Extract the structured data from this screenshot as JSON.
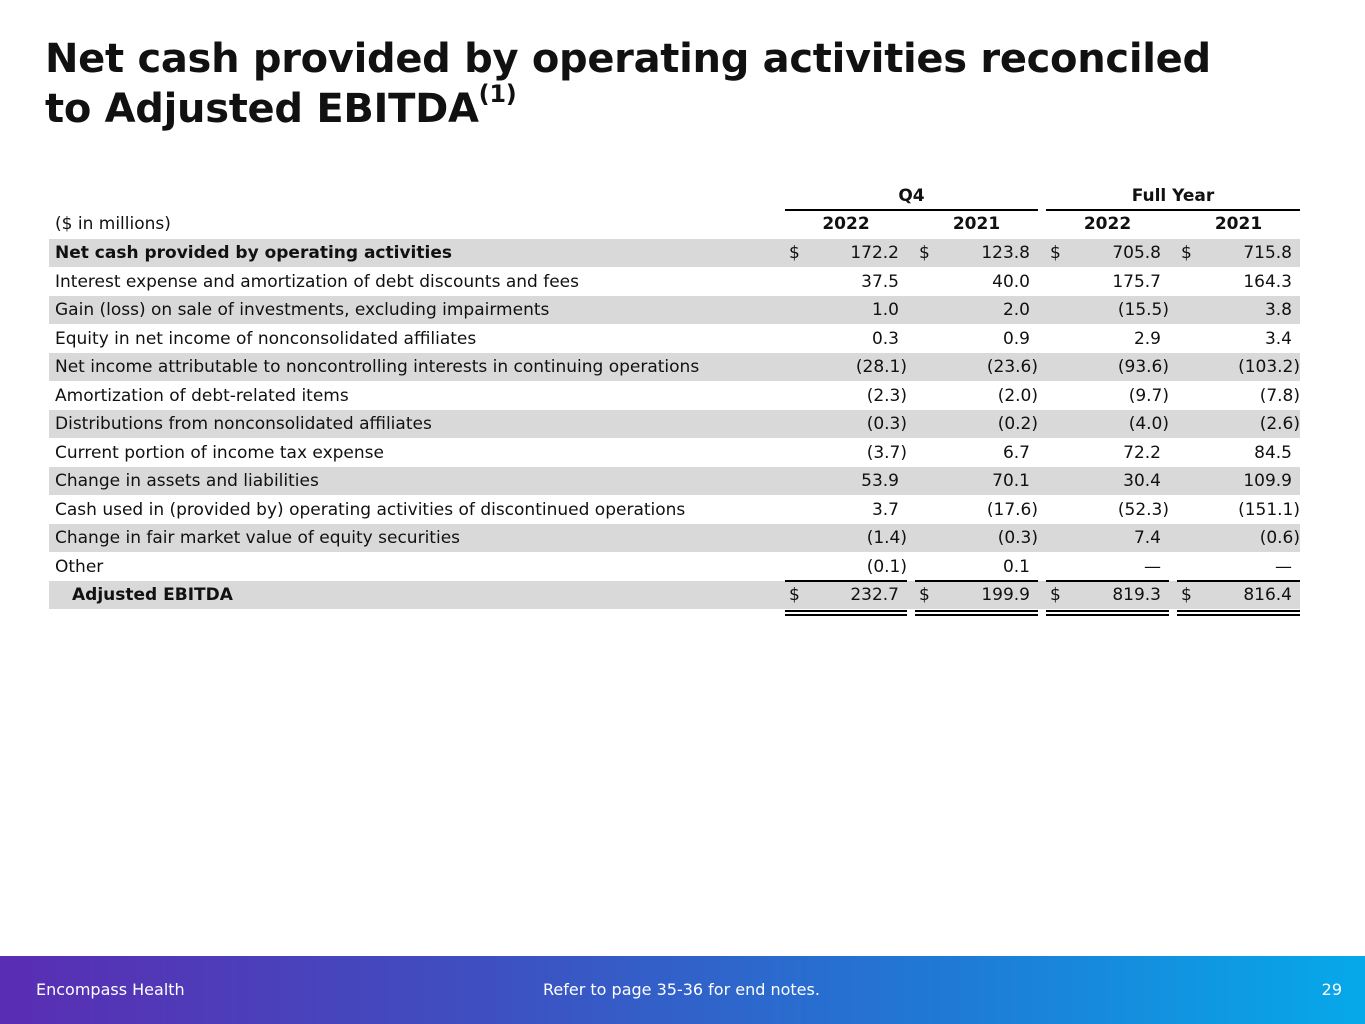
{
  "header": {
    "title_lines": [
      "Net cash provided by operating activities reconciled",
      "to Adjusted EBITDA"
    ],
    "title_note": "(1)"
  },
  "table": {
    "unit_label": "($ in millions)",
    "column_groups": [
      "Q4",
      "Full Year"
    ],
    "columns": [
      "2022",
      "2021",
      "2022",
      "2021"
    ],
    "currency_symbol": "$",
    "rows": [
      {
        "label": "Net cash provided by operating activities",
        "values": [
          "172.2",
          "123.8",
          "705.8",
          "715.8"
        ]
      },
      {
        "label": "Interest expense and amortization of debt discounts and fees",
        "values": [
          "37.5",
          "40.0",
          "175.7",
          "164.3"
        ]
      },
      {
        "label": "Gain (loss) on sale of investments, excluding impairments",
        "values": [
          "1.0",
          "2.0",
          "(15.5)",
          "3.8"
        ]
      },
      {
        "label": "Equity in net income of nonconsolidated affiliates",
        "values": [
          "0.3",
          "0.9",
          "2.9",
          "3.4"
        ]
      },
      {
        "label": "Net income attributable to noncontrolling interests in continuing operations",
        "values": [
          "(28.1)",
          "(23.6)",
          "(93.6)",
          "(103.2)"
        ]
      },
      {
        "label": "Amortization of debt-related items",
        "values": [
          "(2.3)",
          "(2.0)",
          "(9.7)",
          "(7.8)"
        ]
      },
      {
        "label": "Distributions from nonconsolidated affiliates",
        "values": [
          "(0.3)",
          "(0.2)",
          "(4.0)",
          "(2.6)"
        ]
      },
      {
        "label": "Current portion of income tax expense",
        "values": [
          "(3.7)",
          "6.7",
          "72.2",
          "84.5"
        ]
      },
      {
        "label": "Change in assets and liabilities",
        "values": [
          "53.9",
          "70.1",
          "30.4",
          "109.9"
        ]
      },
      {
        "label": "Cash used in (provided by) operating activities of discontinued operations",
        "values": [
          "3.7",
          "(17.6)",
          "(52.3)",
          "(151.1)"
        ]
      },
      {
        "label": "Change in fair market value of equity securities",
        "values": [
          "(1.4)",
          "(0.3)",
          "7.4",
          "(0.6)"
        ]
      },
      {
        "label": "Other",
        "values": [
          "(0.1)",
          "0.1",
          "—",
          "—"
        ]
      },
      {
        "label": "Adjusted EBITDA",
        "values": [
          "232.7",
          "199.9",
          "819.3",
          "816.4"
        ]
      }
    ]
  },
  "footer": {
    "company": "Encompass Health",
    "note": "Refer to page 35-36 for end notes.",
    "page_number": "29"
  }
}
